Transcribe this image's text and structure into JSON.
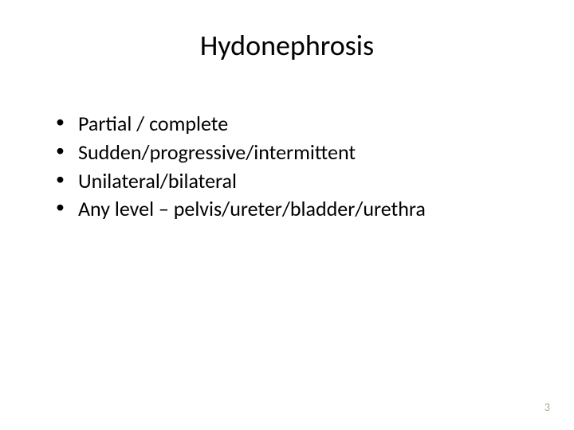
{
  "slide": {
    "title": "Hydonephrosis",
    "bullets": [
      "Partial / complete",
      "Sudden/progressive/intermittent",
      "Unilateral/bilateral",
      "Any level – pelvis/ureter/bladder/urethra"
    ],
    "pageNumber": "3"
  },
  "styling": {
    "background_color": "#ffffff",
    "title_fontsize": 36,
    "title_color": "#000000",
    "bullet_fontsize": 26,
    "bullet_color": "#000000",
    "page_number_fontsize": 14,
    "page_number_color": "#b0a890",
    "font_family": "Calibri, Arial, sans-serif"
  }
}
